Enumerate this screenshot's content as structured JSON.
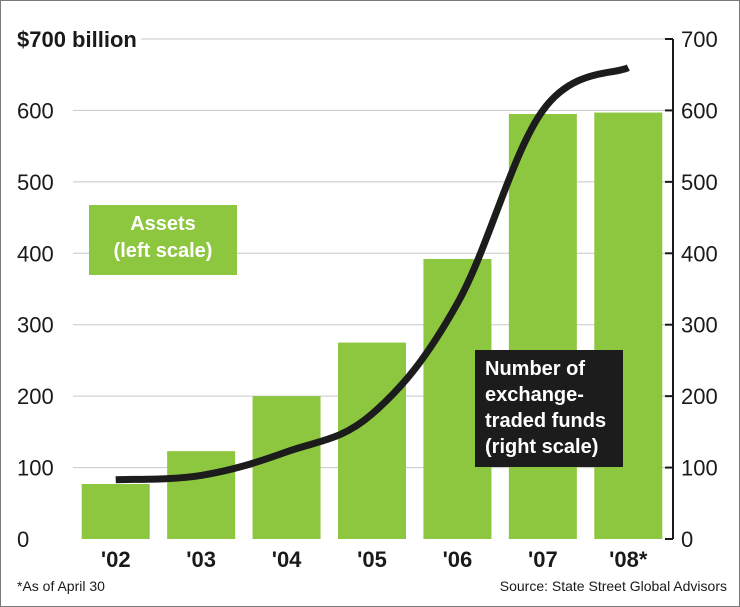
{
  "chart_data": {
    "type": "bar",
    "categories": [
      "'02",
      "'03",
      "'04",
      "'05",
      "'06",
      "'07",
      "'08*"
    ],
    "series": [
      {
        "name": "Assets (left scale)",
        "type": "bar",
        "axis": "left",
        "values": [
          77,
          123,
          200,
          275,
          392,
          595,
          597
        ]
      },
      {
        "name": "Number of exchange-traded funds (right scale)",
        "type": "line",
        "axis": "right",
        "values": [
          83,
          89,
          122,
          175,
          330,
          600,
          660
        ]
      }
    ],
    "y_left": {
      "label": "$700 billion",
      "range": [
        0,
        700
      ],
      "ticks": [
        0,
        100,
        200,
        300,
        400,
        500,
        600
      ]
    },
    "y_right": {
      "range": [
        0,
        700
      ],
      "ticks": [
        0,
        100,
        200,
        300,
        400,
        500,
        600,
        700
      ]
    },
    "legend": {
      "assets": [
        "Assets",
        "(left scale)"
      ],
      "funds": [
        "Number of",
        "exchange-",
        "traded funds",
        "(right scale)"
      ]
    },
    "footnote": "*As of April 30",
    "source": "Source: State Street Global Advisors",
    "colors": {
      "bar": "#8dc63f",
      "line": "#1c1c1c",
      "grid": "#c8c8c8"
    }
  }
}
